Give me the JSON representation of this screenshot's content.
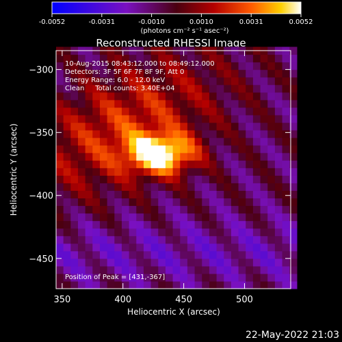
{
  "colorbar": {
    "ticks": [
      "-0.0052",
      "-0.0031",
      "-0.0010",
      "0.0010",
      "0.0031",
      "0.0052"
    ],
    "unit_label": "(photons cm⁻² s⁻¹ asec⁻²)",
    "range": [
      -0.0052,
      0.0052
    ]
  },
  "info_lines": [
    "10-Aug-2015 08:43:12.000 to 08:49:12.000",
    "Detectors: 3F 5F 6F 7F 8F 9F, Att 0",
    "Energy Range: 6.0 - 12.0 keV",
    "Clean     Total counts: 3.40E+04"
  ],
  "peak_label": "Position of Peak = [431,-367]",
  "footer_date": "22-May-2022 21:03",
  "chart_data": {
    "type": "heatmap",
    "title": "Reconstructed RHESSI Image",
    "xlabel": "Heliocentric X (arcsec)",
    "ylabel": "Heliocentric Y (arcsec)",
    "xlim": [
      345,
      538
    ],
    "ylim": [
      -474,
      -285
    ],
    "xticks": [
      350,
      400,
      450,
      500
    ],
    "yticks": [
      -300,
      -350,
      -400,
      -450
    ],
    "peak": {
      "x": 431,
      "y": -367
    },
    "colormap": "hot-with-blue-negative",
    "grid": false
  }
}
